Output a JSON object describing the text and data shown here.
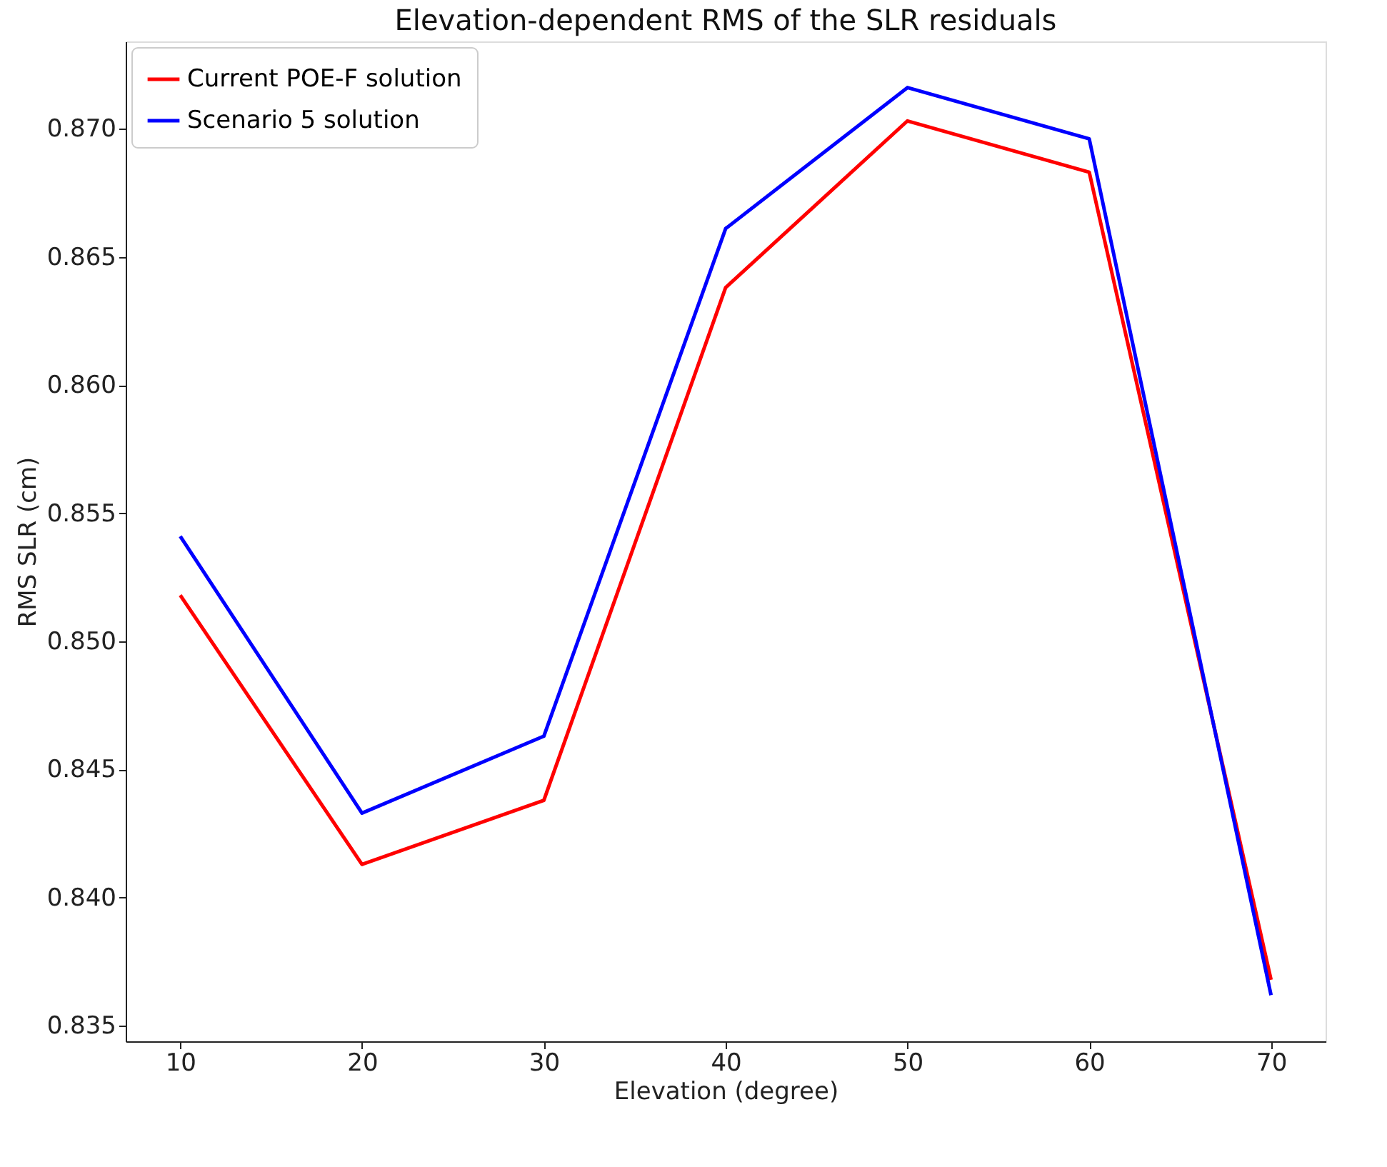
{
  "chart_data": {
    "type": "line",
    "title": "Elevation-dependent RMS of the SLR residuals",
    "xlabel": "Elevation (degree)",
    "ylabel": "RMS SLR (cm)",
    "x": [
      10,
      20,
      30,
      40,
      50,
      60,
      70
    ],
    "series": [
      {
        "name": "Current POE-F solution",
        "color": "#ff0000",
        "values": [
          0.8518,
          0.8413,
          0.8438,
          0.8638,
          0.8703,
          0.8683,
          0.8368
        ]
      },
      {
        "name": "Scenario 5 solution",
        "color": "#0000ff",
        "values": [
          0.8541,
          0.8433,
          0.8463,
          0.8661,
          0.8716,
          0.8696,
          0.8362
        ]
      }
    ],
    "xlim": [
      7,
      73
    ],
    "xticks": [
      10,
      20,
      30,
      40,
      50,
      60,
      70
    ],
    "ylim": [
      0.8344,
      0.8734
    ],
    "yticks": [
      0.835,
      {
        "value": 0.84,
        "label": "0.840"
      },
      0.845,
      {
        "value": 0.85,
        "label": "0.850"
      },
      0.855,
      {
        "value": 0.86,
        "label": "0.860"
      },
      0.865,
      {
        "value": 0.87,
        "label": "0.870"
      }
    ],
    "legend": "top left",
    "grid": false,
    "marker": "none",
    "line_style": "solid"
  }
}
